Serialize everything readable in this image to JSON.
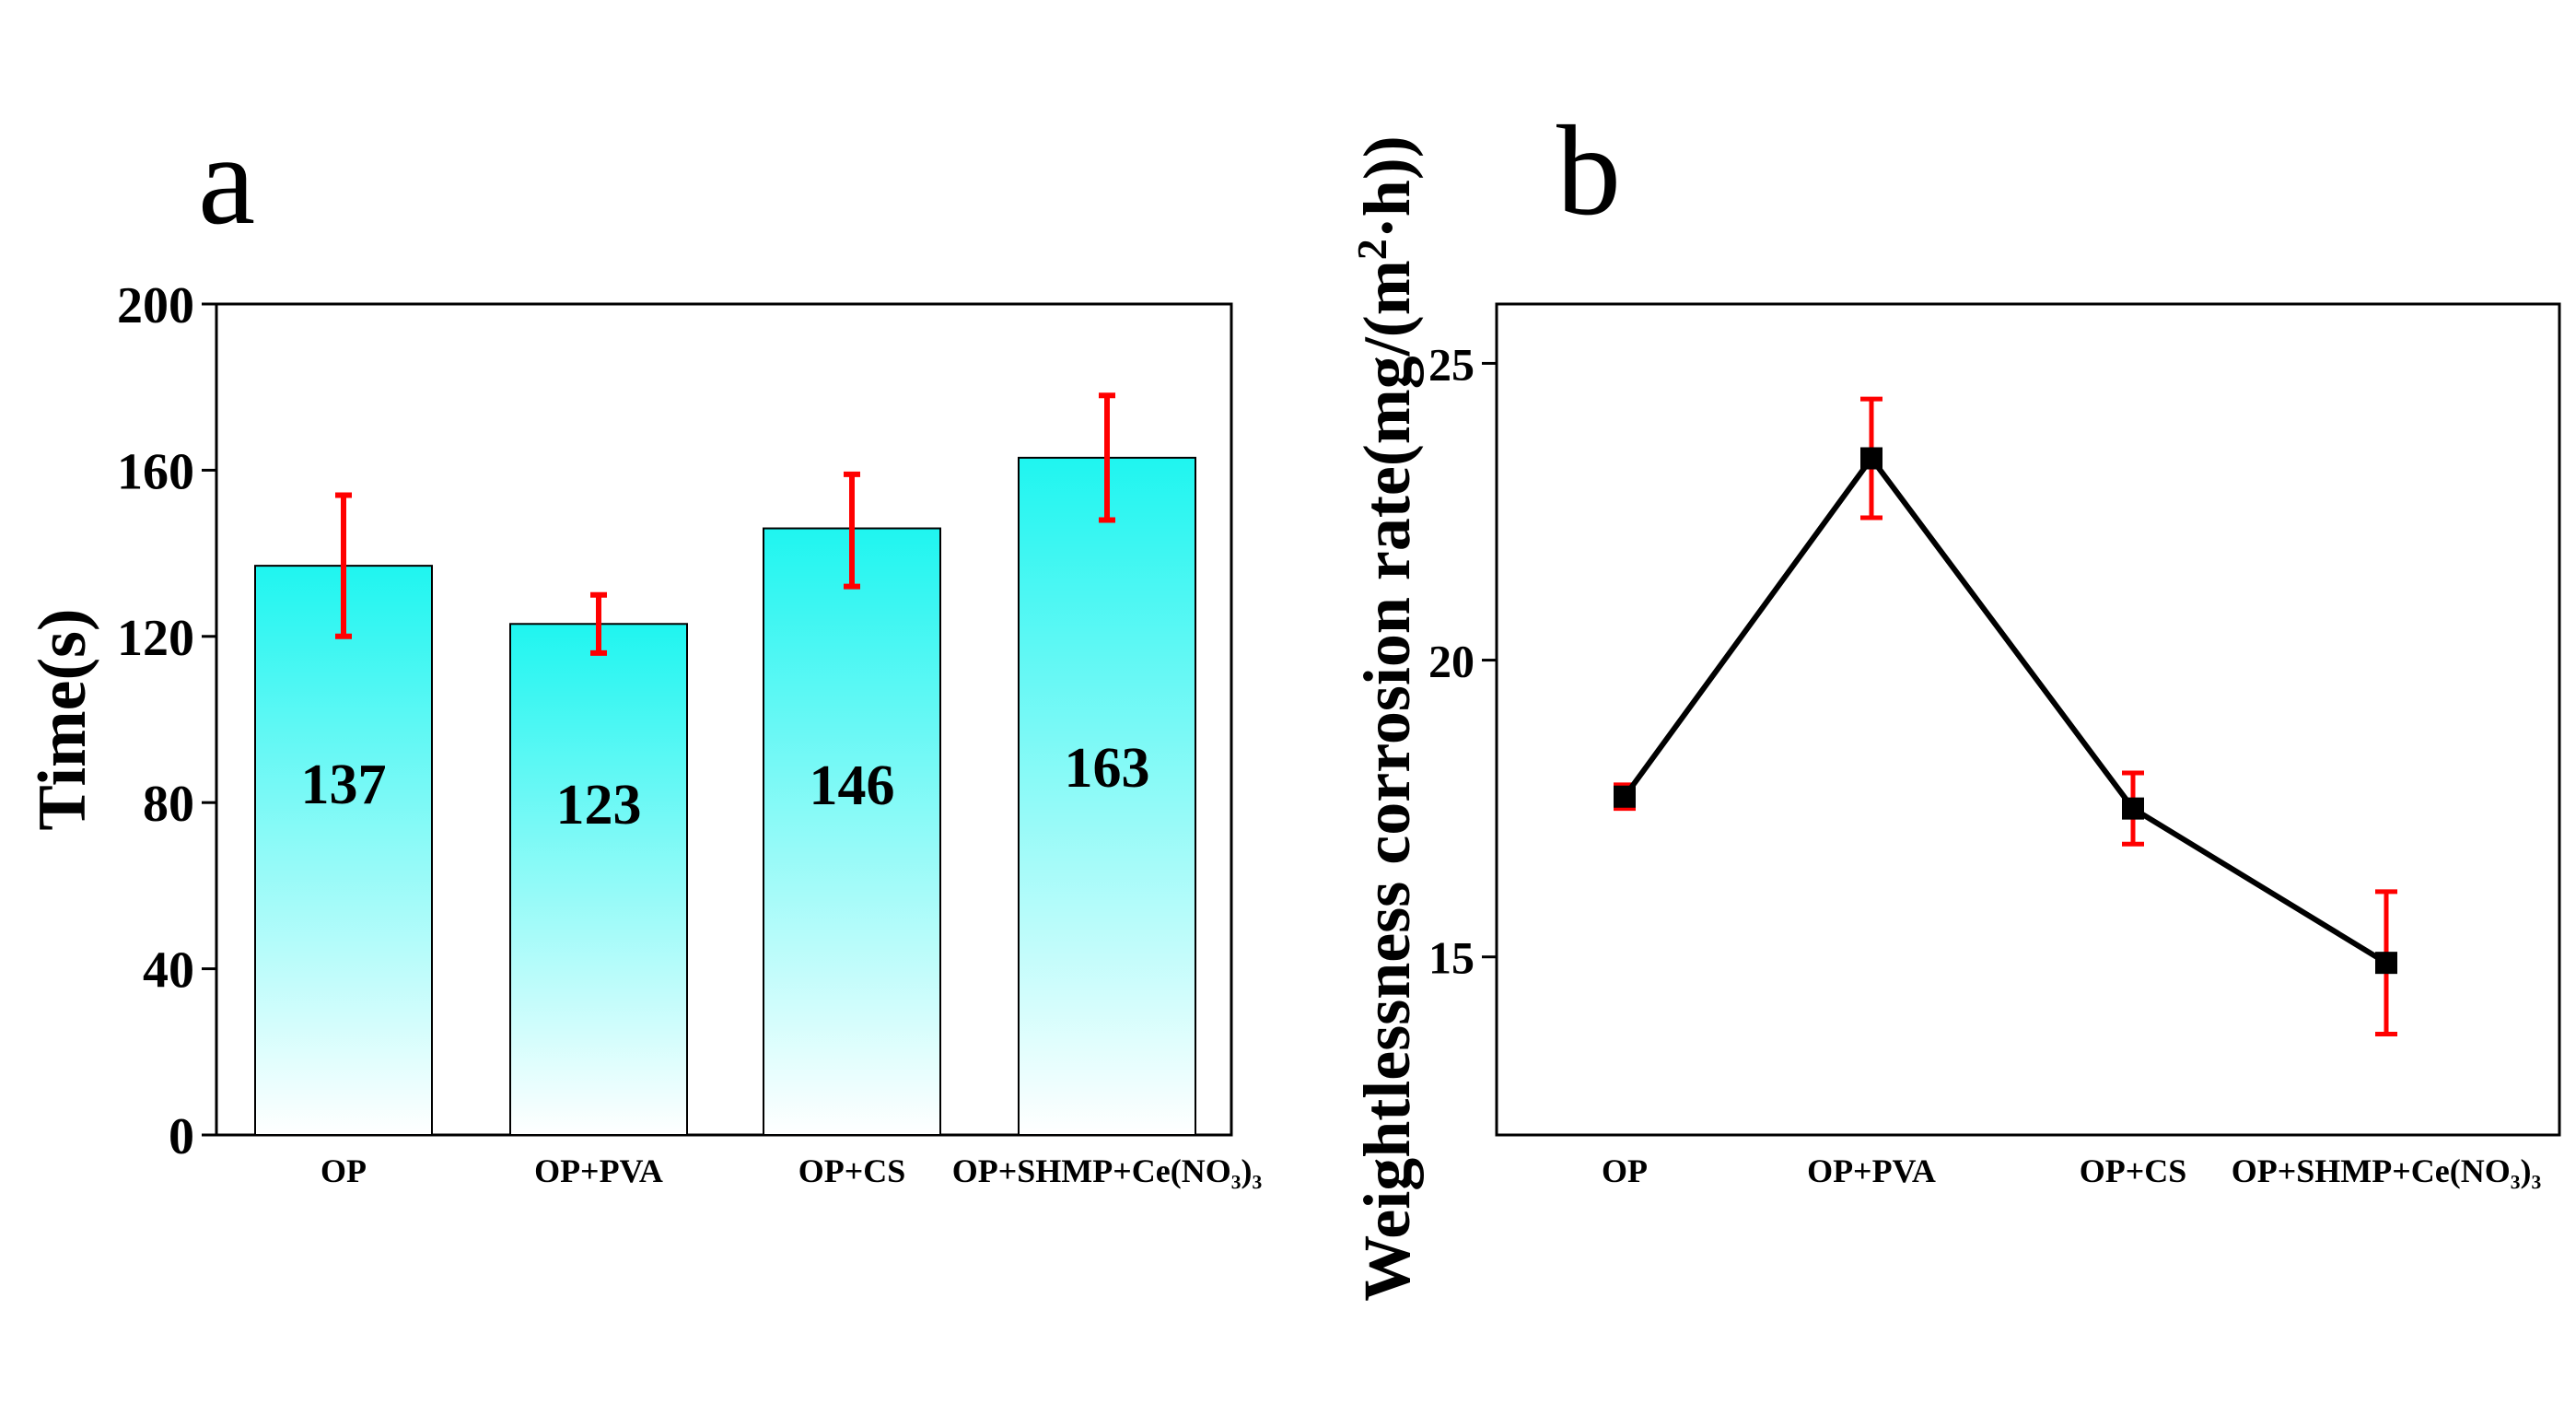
{
  "chart_data": [
    {
      "type": "bar",
      "panel_label": "a",
      "categories": [
        "OP",
        "OP+PVA",
        "OP+CS",
        "OP+SHMP+Ce(NO₃)₃"
      ],
      "values": [
        137,
        123,
        146,
        163
      ],
      "error_bars": [
        {
          "low": 120,
          "high": 154
        },
        {
          "low": 116,
          "high": 130
        },
        {
          "low": 132,
          "high": 159
        },
        {
          "low": 148,
          "high": 178
        }
      ],
      "data_labels": [
        "137",
        "123",
        "146",
        "163"
      ],
      "ylabel": "Time(s)",
      "xlabel": "",
      "ylim": [
        0,
        200
      ],
      "yticks": [
        "0",
        "40",
        "80",
        "120",
        "160",
        "200"
      ],
      "grid": false,
      "colors": {
        "bar_top": "#1ff5f0",
        "bar_bottom": "#ffffff",
        "error": "#ff0000",
        "edge": "#000000"
      }
    },
    {
      "type": "line",
      "panel_label": "b",
      "categories": [
        "OP",
        "OP+PVA",
        "OP+CS",
        "OP+SHMP+Ce(NO₃)₃"
      ],
      "values": [
        17.7,
        23.4,
        17.5,
        14.9
      ],
      "error_bars": [
        {
          "low": 17.5,
          "high": 17.9
        },
        {
          "low": 22.4,
          "high": 24.4
        },
        {
          "low": 16.9,
          "high": 18.1
        },
        {
          "low": 13.7,
          "high": 16.1
        }
      ],
      "ylabel": "Weightlessness corrosion rate(mg/(m²·h))",
      "xlabel": "",
      "ylim": [
        12,
        26
      ],
      "yticks": [
        "15",
        "20",
        "25"
      ],
      "grid": false,
      "colors": {
        "line": "#000000",
        "marker": "#000000",
        "error": "#ff0000"
      }
    }
  ]
}
